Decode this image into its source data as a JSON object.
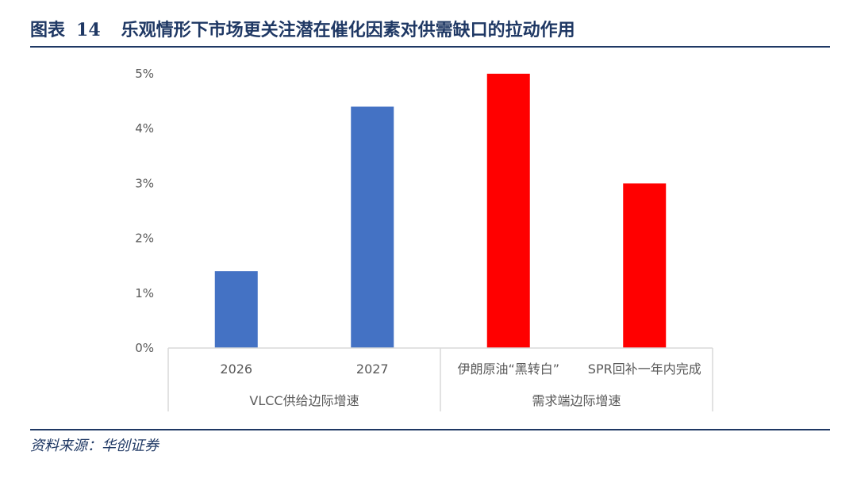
{
  "figure": {
    "label": "图表",
    "number": "14",
    "title": "乐观情形下市场更关注潜在催化因素对供需缺口的拉动作用"
  },
  "source": "资料来源：华创证券",
  "colors": {
    "blue": "#4472c4",
    "red": "#ff0000",
    "navy": "#1f3864",
    "axis": "#d9d9d9",
    "text": "#595959"
  },
  "chart_data": {
    "type": "bar",
    "categories": [
      "2026",
      "2027",
      "伊朗原油“黑转白”",
      "SPR回补一年内完成"
    ],
    "groups": [
      {
        "label": "VLCC供给边际增速",
        "categories": [
          "2026",
          "2027"
        ]
      },
      {
        "label": "需求端边际增速",
        "categories": [
          "伊朗原油“黑转白”",
          "SPR回补一年内完成"
        ]
      }
    ],
    "values": [
      0.014,
      0.044,
      0.05,
      0.03
    ],
    "bar_colors": [
      "#4472c4",
      "#4472c4",
      "#ff0000",
      "#ff0000"
    ],
    "ylim": [
      0,
      0.05
    ],
    "yticks": [
      "0%",
      "1%",
      "2%",
      "3%",
      "4%",
      "5%"
    ],
    "grid": false,
    "legend": "none"
  }
}
